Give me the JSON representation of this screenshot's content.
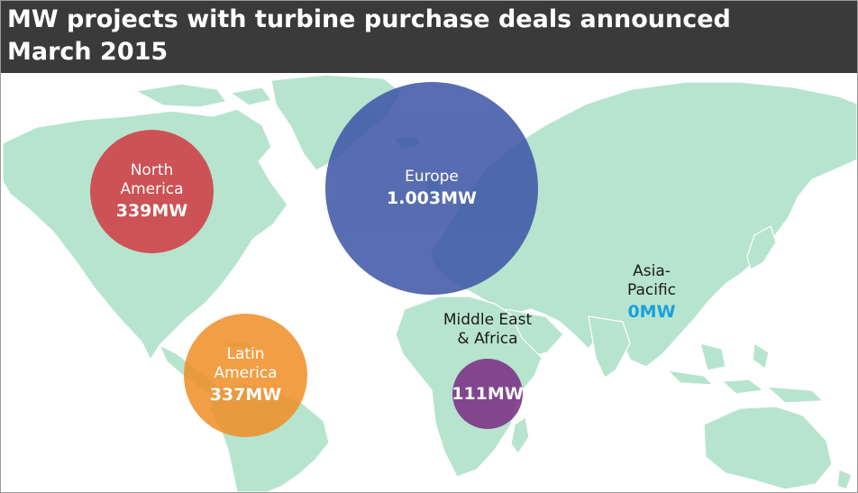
{
  "title": {
    "line1": "MW projects with turbine purchase deals announced",
    "line2": "March 2015"
  },
  "colors": {
    "title_bar": "#3a3a3a",
    "land": "#b7e4cf",
    "north_america": "#d13d44",
    "europe": "#3f57a6",
    "latin_america": "#f0902a",
    "middle_east_africa": "#7a2f84",
    "asia_pacific_value": "#1aa0dd"
  },
  "regions": {
    "north_america": {
      "name_line1": "North",
      "name_line2": "America",
      "value": "339MW",
      "mw": 339
    },
    "europe": {
      "name_line1": "Europe",
      "value": "1.003MW",
      "mw": 1003
    },
    "latin_america": {
      "name_line1": "Latin",
      "name_line2": "America",
      "value": "337MW",
      "mw": 337
    },
    "middle_east_africa": {
      "name_line1": "Middle East",
      "name_line2": "& Africa",
      "value": "111MW",
      "mw": 111
    },
    "asia_pacific": {
      "name_line1": "Asia-",
      "name_line2": "Pacific",
      "value": "0MW",
      "mw": 0
    }
  }
}
